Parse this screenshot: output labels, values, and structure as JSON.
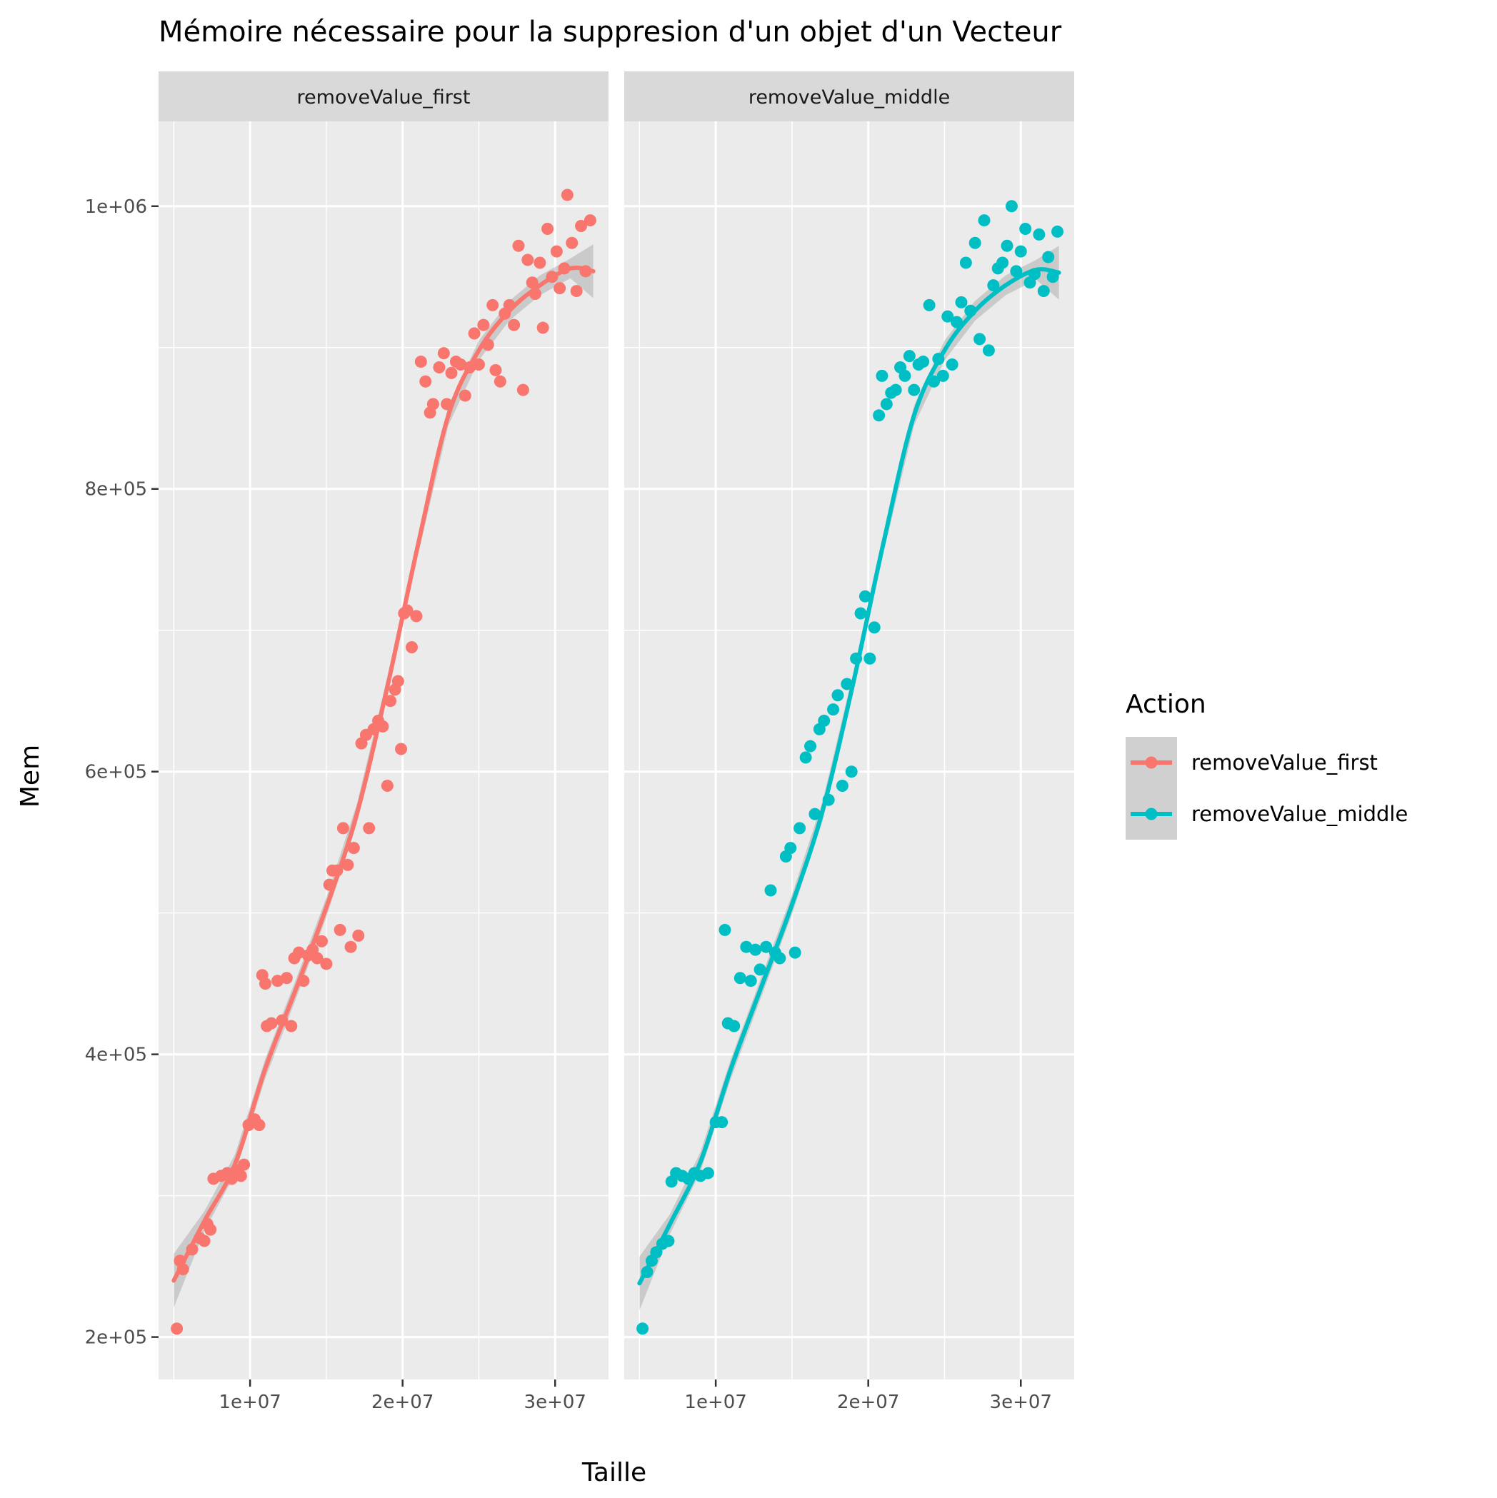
{
  "chart_data": {
    "type": "scatter",
    "title": "Mémoire nécessaire pour la suppresion d'un objet d'un Vecteur",
    "xlabel": "Taille",
    "ylabel": "Mem",
    "xlim": [
      4000000,
      33500000
    ],
    "ylim": [
      170000,
      1060000
    ],
    "x_ticks": [
      10000000,
      20000000,
      30000000
    ],
    "x_tick_labels": [
      "1e+07",
      "2e+07",
      "3e+07"
    ],
    "y_ticks": [
      200000,
      400000,
      600000,
      800000,
      1000000
    ],
    "y_tick_labels": [
      "2e+05",
      "4e+05",
      "6e+05",
      "8e+05",
      "1e+06"
    ],
    "grid": true,
    "legend": {
      "title": "Action",
      "position": "right"
    },
    "series": [
      {
        "name": "removeValue_first",
        "color": "#F8766D",
        "points": [
          [
            5200000,
            206000
          ],
          [
            5400000,
            254000
          ],
          [
            5600000,
            248000
          ],
          [
            6200000,
            262000
          ],
          [
            6700000,
            270000
          ],
          [
            7000000,
            268000
          ],
          [
            7200000,
            280000
          ],
          [
            7400000,
            276000
          ],
          [
            7600000,
            312000
          ],
          [
            8100000,
            314000
          ],
          [
            8500000,
            316000
          ],
          [
            8800000,
            312000
          ],
          [
            9100000,
            318000
          ],
          [
            9400000,
            314000
          ],
          [
            9600000,
            322000
          ],
          [
            9900000,
            350000
          ],
          [
            10300000,
            354000
          ],
          [
            10600000,
            350000
          ],
          [
            10800000,
            456000
          ],
          [
            11000000,
            450000
          ],
          [
            11100000,
            420000
          ],
          [
            11400000,
            422000
          ],
          [
            11800000,
            452000
          ],
          [
            12100000,
            424000
          ],
          [
            12400000,
            454000
          ],
          [
            12700000,
            420000
          ],
          [
            12900000,
            468000
          ],
          [
            13200000,
            472000
          ],
          [
            13500000,
            452000
          ],
          [
            13800000,
            470000
          ],
          [
            14100000,
            474000
          ],
          [
            14400000,
            468000
          ],
          [
            14700000,
            480000
          ],
          [
            15000000,
            464000
          ],
          [
            15200000,
            520000
          ],
          [
            15400000,
            530000
          ],
          [
            15700000,
            530000
          ],
          [
            15900000,
            488000
          ],
          [
            16100000,
            560000
          ],
          [
            16400000,
            534000
          ],
          [
            16600000,
            476000
          ],
          [
            16800000,
            546000
          ],
          [
            17100000,
            484000
          ],
          [
            17300000,
            620000
          ],
          [
            17600000,
            626000
          ],
          [
            17800000,
            560000
          ],
          [
            18100000,
            630000
          ],
          [
            18400000,
            636000
          ],
          [
            18700000,
            632000
          ],
          [
            19000000,
            590000
          ],
          [
            19200000,
            650000
          ],
          [
            19500000,
            658000
          ],
          [
            19700000,
            664000
          ],
          [
            19900000,
            616000
          ],
          [
            20100000,
            712000
          ],
          [
            20300000,
            714000
          ],
          [
            20600000,
            688000
          ],
          [
            20900000,
            710000
          ],
          [
            21200000,
            890000
          ],
          [
            21500000,
            876000
          ],
          [
            21800000,
            854000
          ],
          [
            22000000,
            860000
          ],
          [
            22400000,
            886000
          ],
          [
            22700000,
            896000
          ],
          [
            22900000,
            860000
          ],
          [
            23200000,
            882000
          ],
          [
            23500000,
            890000
          ],
          [
            23800000,
            888000
          ],
          [
            24100000,
            866000
          ],
          [
            24400000,
            886000
          ],
          [
            24700000,
            910000
          ],
          [
            25000000,
            888000
          ],
          [
            25300000,
            916000
          ],
          [
            25600000,
            902000
          ],
          [
            25900000,
            930000
          ],
          [
            26100000,
            884000
          ],
          [
            26400000,
            876000
          ],
          [
            26700000,
            924000
          ],
          [
            27000000,
            930000
          ],
          [
            27300000,
            916000
          ],
          [
            27600000,
            972000
          ],
          [
            27900000,
            870000
          ],
          [
            28200000,
            962000
          ],
          [
            28500000,
            946000
          ],
          [
            28700000,
            938000
          ],
          [
            29000000,
            960000
          ],
          [
            29200000,
            914000
          ],
          [
            29500000,
            984000
          ],
          [
            29800000,
            950000
          ],
          [
            30100000,
            968000
          ],
          [
            30300000,
            942000
          ],
          [
            30600000,
            956000
          ],
          [
            30800000,
            1008000
          ],
          [
            31100000,
            974000
          ],
          [
            31400000,
            940000
          ],
          [
            31700000,
            986000
          ],
          [
            32000000,
            954000
          ],
          [
            32300000,
            990000
          ]
        ],
        "trend": [
          [
            5000000,
            240000
          ],
          [
            7000000,
            282000
          ],
          [
            9000000,
            322000
          ],
          [
            11000000,
            390000
          ],
          [
            13000000,
            446000
          ],
          [
            15000000,
            504000
          ],
          [
            17000000,
            570000
          ],
          [
            19000000,
            660000
          ],
          [
            21000000,
            760000
          ],
          [
            23000000,
            852000
          ],
          [
            25000000,
            898000
          ],
          [
            27000000,
            926000
          ],
          [
            29000000,
            944000
          ],
          [
            31000000,
            956000
          ],
          [
            32500000,
            954000
          ]
        ]
      },
      {
        "name": "removeValue_middle",
        "color": "#00BFC4",
        "points": [
          [
            5200000,
            206000
          ],
          [
            5500000,
            246000
          ],
          [
            5800000,
            254000
          ],
          [
            6100000,
            260000
          ],
          [
            6500000,
            266000
          ],
          [
            6900000,
            268000
          ],
          [
            7100000,
            310000
          ],
          [
            7400000,
            316000
          ],
          [
            7800000,
            314000
          ],
          [
            8200000,
            312000
          ],
          [
            8600000,
            316000
          ],
          [
            9000000,
            314000
          ],
          [
            9500000,
            316000
          ],
          [
            10000000,
            352000
          ],
          [
            10400000,
            352000
          ],
          [
            10600000,
            488000
          ],
          [
            10800000,
            422000
          ],
          [
            11200000,
            420000
          ],
          [
            11600000,
            454000
          ],
          [
            12000000,
            476000
          ],
          [
            12300000,
            452000
          ],
          [
            12600000,
            474000
          ],
          [
            12900000,
            460000
          ],
          [
            13300000,
            476000
          ],
          [
            13600000,
            516000
          ],
          [
            13900000,
            472000
          ],
          [
            14200000,
            468000
          ],
          [
            14600000,
            540000
          ],
          [
            14900000,
            546000
          ],
          [
            15200000,
            472000
          ],
          [
            15500000,
            560000
          ],
          [
            15900000,
            610000
          ],
          [
            16200000,
            618000
          ],
          [
            16500000,
            570000
          ],
          [
            16800000,
            630000
          ],
          [
            17100000,
            636000
          ],
          [
            17400000,
            580000
          ],
          [
            17700000,
            644000
          ],
          [
            18000000,
            654000
          ],
          [
            18300000,
            590000
          ],
          [
            18600000,
            662000
          ],
          [
            18900000,
            600000
          ],
          [
            19200000,
            680000
          ],
          [
            19500000,
            712000
          ],
          [
            19800000,
            724000
          ],
          [
            20100000,
            680000
          ],
          [
            20400000,
            702000
          ],
          [
            20700000,
            852000
          ],
          [
            20900000,
            880000
          ],
          [
            21200000,
            860000
          ],
          [
            21500000,
            868000
          ],
          [
            21800000,
            870000
          ],
          [
            22100000,
            886000
          ],
          [
            22400000,
            880000
          ],
          [
            22700000,
            894000
          ],
          [
            23000000,
            870000
          ],
          [
            23300000,
            888000
          ],
          [
            23600000,
            890000
          ],
          [
            24000000,
            930000
          ],
          [
            24300000,
            876000
          ],
          [
            24600000,
            892000
          ],
          [
            24900000,
            880000
          ],
          [
            25200000,
            922000
          ],
          [
            25500000,
            888000
          ],
          [
            25800000,
            918000
          ],
          [
            26100000,
            932000
          ],
          [
            26400000,
            960000
          ],
          [
            26700000,
            926000
          ],
          [
            27000000,
            974000
          ],
          [
            27300000,
            906000
          ],
          [
            27600000,
            990000
          ],
          [
            27900000,
            898000
          ],
          [
            28200000,
            944000
          ],
          [
            28500000,
            956000
          ],
          [
            28800000,
            960000
          ],
          [
            29100000,
            972000
          ],
          [
            29400000,
            1000000
          ],
          [
            29700000,
            954000
          ],
          [
            30000000,
            968000
          ],
          [
            30300000,
            984000
          ],
          [
            30600000,
            946000
          ],
          [
            30900000,
            952000
          ],
          [
            31200000,
            980000
          ],
          [
            31500000,
            940000
          ],
          [
            31800000,
            964000
          ],
          [
            32100000,
            950000
          ],
          [
            32400000,
            982000
          ]
        ],
        "trend": [
          [
            5000000,
            238000
          ],
          [
            7000000,
            280000
          ],
          [
            9000000,
            324000
          ],
          [
            11000000,
            390000
          ],
          [
            13000000,
            448000
          ],
          [
            15000000,
            506000
          ],
          [
            17000000,
            572000
          ],
          [
            19000000,
            662000
          ],
          [
            21000000,
            762000
          ],
          [
            23000000,
            852000
          ],
          [
            25000000,
            898000
          ],
          [
            27000000,
            926000
          ],
          [
            29000000,
            944000
          ],
          [
            31000000,
            955000
          ],
          [
            32500000,
            953000
          ]
        ]
      }
    ],
    "panels": [
      "removeValue_first",
      "removeValue_middle"
    ]
  }
}
